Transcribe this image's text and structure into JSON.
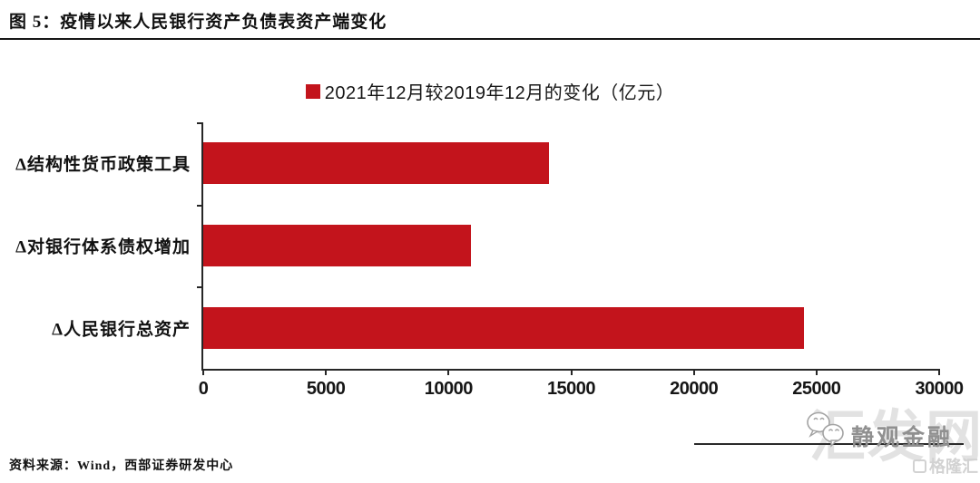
{
  "page": {
    "title": "图 5：疫情以来人民银行资产负债表资产端变化",
    "source_note": "资料来源：Wind，西部证券研发中心"
  },
  "chart_data": {
    "type": "bar",
    "orientation": "horizontal",
    "legend": [
      {
        "label": "2021年12月较2019年12月的变化（亿元）",
        "color": "#c3141c"
      }
    ],
    "legend_position": "top-center",
    "categories": [
      "Δ结构性货币政策工具",
      "Δ对银行体系债权增加",
      "Δ人民银行总资产"
    ],
    "values": [
      14100,
      10900,
      24500
    ],
    "unit": "亿元",
    "xlim": [
      0,
      30000
    ],
    "xticks": [
      0,
      5000,
      10000,
      15000,
      20000,
      25000,
      30000
    ],
    "grid": false,
    "bar_color": "#c3141c",
    "axis_color": "#262626"
  },
  "watermark": {
    "wechat_account": "静观金融",
    "site": "汇发网",
    "badge": "格隆汇"
  }
}
